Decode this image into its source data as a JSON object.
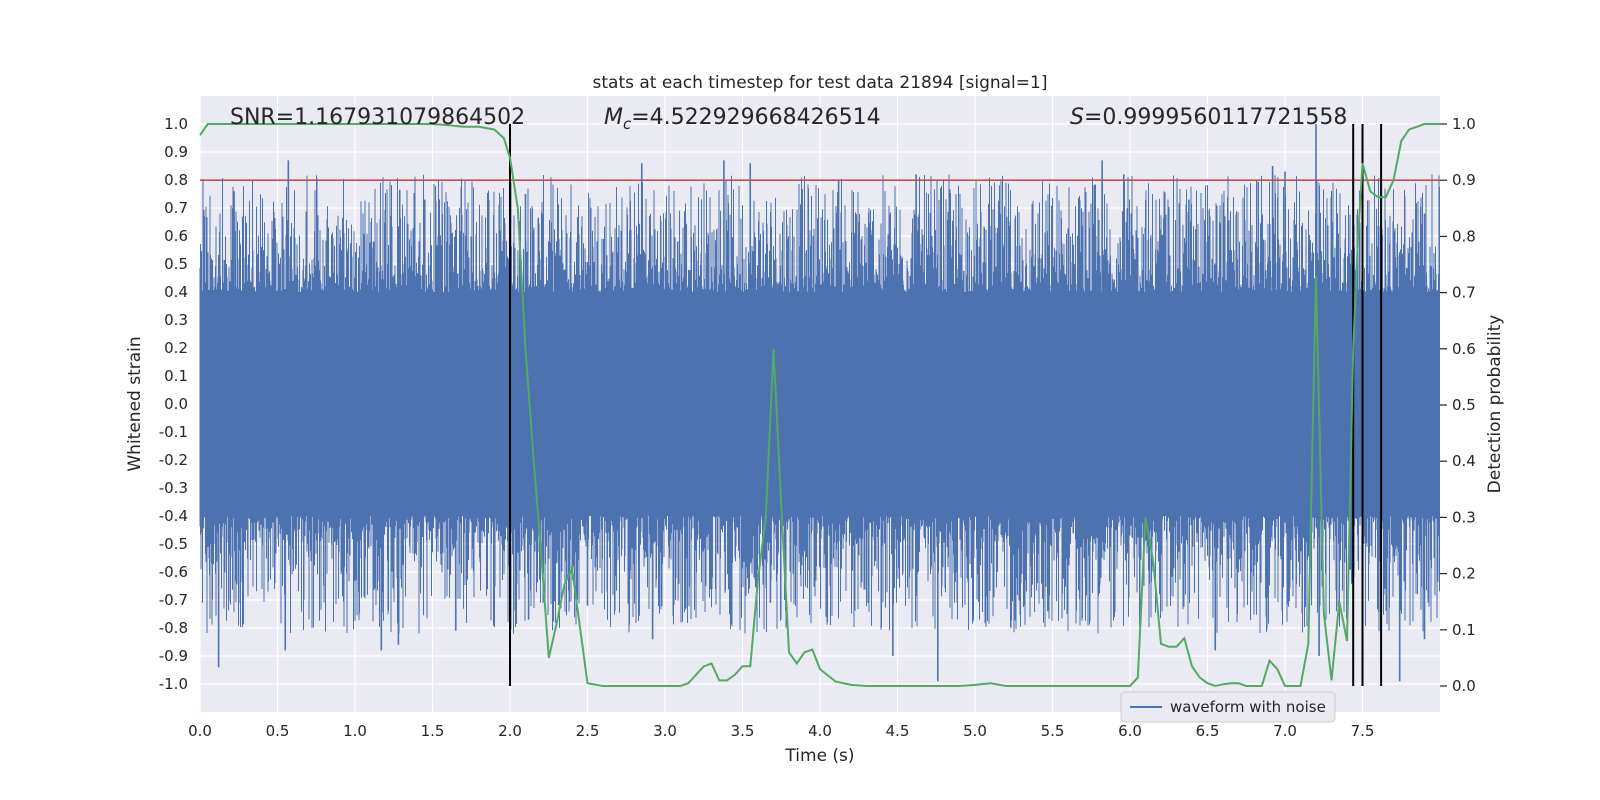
{
  "chart_data": {
    "type": "line",
    "title": "stats at each timestep for test data 21894 [signal=1]",
    "xlabel": "Time (s)",
    "ylabel_left": "Whitened strain",
    "ylabel_right": "Detection probability",
    "xlim": [
      0,
      8
    ],
    "ylim_left": [
      -1.1,
      1.1
    ],
    "ylim_right": [
      0.0,
      1.0
    ],
    "x_ticks": [
      "0.0",
      "0.5",
      "1.0",
      "1.5",
      "2.0",
      "2.5",
      "3.0",
      "3.5",
      "4.0",
      "4.5",
      "5.0",
      "5.5",
      "6.0",
      "6.5",
      "7.0",
      "7.5"
    ],
    "x_tick_values": [
      0,
      0.5,
      1,
      1.5,
      2,
      2.5,
      3,
      3.5,
      4,
      4.5,
      5,
      5.5,
      6,
      6.5,
      7,
      7.5
    ],
    "y_left_ticks": [
      "1.0",
      "0.9",
      "0.8",
      "0.7",
      "0.6",
      "0.5",
      "0.4",
      "0.3",
      "0.2",
      "0.1",
      "0.0",
      "-0.1",
      "-0.2",
      "-0.3",
      "-0.4",
      "-0.5",
      "-0.6",
      "-0.7",
      "-0.8",
      "-0.9",
      "-1.0"
    ],
    "y_left_tick_values": [
      1.0,
      0.9,
      0.8,
      0.7,
      0.6,
      0.5,
      0.4,
      0.3,
      0.2,
      0.1,
      0.0,
      -0.1,
      -0.2,
      -0.3,
      -0.4,
      -0.5,
      -0.6,
      -0.7,
      -0.8,
      -0.9,
      -1.0
    ],
    "y_right_ticks": [
      "1.0",
      "0.9",
      "0.8",
      "0.7",
      "0.6",
      "0.5",
      "0.4",
      "0.3",
      "0.2",
      "0.1",
      "0.0"
    ],
    "y_right_tick_values": [
      1.0,
      0.9,
      0.8,
      0.7,
      0.6,
      0.5,
      0.4,
      0.3,
      0.2,
      0.1,
      0.0
    ],
    "annotations": {
      "snr": "SNR=1.167931079864502",
      "mc_symbol": "M",
      "mc_subscript": "c",
      "mc_value": "=4.522929668426514",
      "s_symbol": "S",
      "s_value": "=0.9999560117721558"
    },
    "threshold": 0.9,
    "threshold_color": "#c44e52",
    "vertical_lines": [
      2.0,
      7.44,
      7.5,
      7.62
    ],
    "vertical_line_color": "#000000",
    "series": [
      {
        "name": "waveform with noise",
        "axis": "left",
        "color": "#4c72b0",
        "description": "dense noisy strain, core envelope ~±0.4, spikes up to ~±1.0",
        "envelope_core": 0.4,
        "spikes": [
          {
            "x": 0.22,
            "y": 0.76
          },
          {
            "x": 0.57,
            "y": 0.87
          },
          {
            "x": 1.12,
            "y": 0.58
          },
          {
            "x": 1.45,
            "y": 0.73
          },
          {
            "x": 2.1,
            "y": 0.75
          },
          {
            "x": 2.85,
            "y": 0.86
          },
          {
            "x": 3.38,
            "y": 0.87
          },
          {
            "x": 3.55,
            "y": 0.86
          },
          {
            "x": 4.12,
            "y": 0.8
          },
          {
            "x": 4.62,
            "y": 0.82
          },
          {
            "x": 5.82,
            "y": 0.87
          },
          {
            "x": 5.96,
            "y": 0.82
          },
          {
            "x": 6.38,
            "y": 0.73
          },
          {
            "x": 6.92,
            "y": 0.85
          },
          {
            "x": 7.0,
            "y": 0.83
          },
          {
            "x": 7.2,
            "y": 1.0
          },
          {
            "x": 7.5,
            "y": 0.92
          },
          {
            "x": 7.9,
            "y": 0.68
          },
          {
            "x": 0.12,
            "y": -0.94
          },
          {
            "x": 0.55,
            "y": -0.88
          },
          {
            "x": 1.17,
            "y": -0.88
          },
          {
            "x": 1.28,
            "y": -0.86
          },
          {
            "x": 1.65,
            "y": -0.81
          },
          {
            "x": 2.12,
            "y": -0.77
          },
          {
            "x": 2.5,
            "y": -0.72
          },
          {
            "x": 2.92,
            "y": -0.84
          },
          {
            "x": 3.68,
            "y": -0.71
          },
          {
            "x": 4.47,
            "y": -0.9
          },
          {
            "x": 4.76,
            "y": -0.99
          },
          {
            "x": 5.47,
            "y": -0.74
          },
          {
            "x": 6.55,
            "y": -0.88
          },
          {
            "x": 6.88,
            "y": -0.76
          },
          {
            "x": 7.22,
            "y": -0.9
          },
          {
            "x": 7.62,
            "y": -0.9
          },
          {
            "x": 7.74,
            "y": -0.99
          },
          {
            "x": 7.9,
            "y": -0.84
          }
        ]
      },
      {
        "name": "detection probability",
        "axis": "right",
        "color": "#55a868",
        "x": [
          0.0,
          0.05,
          0.1,
          0.2,
          0.3,
          0.4,
          0.5,
          0.6,
          0.7,
          0.8,
          0.9,
          1.0,
          1.1,
          1.2,
          1.3,
          1.4,
          1.5,
          1.6,
          1.7,
          1.8,
          1.9,
          1.96,
          2.0,
          2.05,
          2.1,
          2.15,
          2.2,
          2.25,
          2.3,
          2.35,
          2.4,
          2.5,
          2.6,
          2.7,
          2.8,
          2.9,
          3.0,
          3.05,
          3.1,
          3.15,
          3.2,
          3.25,
          3.3,
          3.35,
          3.4,
          3.45,
          3.5,
          3.55,
          3.6,
          3.65,
          3.7,
          3.75,
          3.8,
          3.85,
          3.9,
          3.95,
          4.0,
          4.1,
          4.2,
          4.3,
          4.4,
          4.5,
          4.6,
          4.7,
          4.8,
          4.9,
          5.0,
          5.1,
          5.2,
          5.3,
          5.4,
          5.5,
          5.6,
          5.7,
          5.75,
          5.8,
          5.85,
          5.9,
          5.95,
          6.0,
          6.05,
          6.1,
          6.15,
          6.2,
          6.25,
          6.3,
          6.35,
          6.4,
          6.45,
          6.5,
          6.55,
          6.6,
          6.65,
          6.7,
          6.75,
          6.8,
          6.85,
          6.9,
          6.95,
          7.0,
          7.05,
          7.1,
          7.15,
          7.2,
          7.25,
          7.3,
          7.35,
          7.4,
          7.44,
          7.47,
          7.5,
          7.55,
          7.6,
          7.65,
          7.7,
          7.75,
          7.8,
          7.9,
          8.0
        ],
        "y": [
          0.98,
          1.0,
          1.0,
          1.0,
          1.0,
          1.0,
          1.0,
          1.0,
          1.0,
          1.0,
          1.0,
          1.0,
          1.0,
          1.0,
          1.0,
          1.0,
          1.0,
          0.998,
          0.995,
          0.995,
          0.99,
          0.975,
          0.94,
          0.85,
          0.6,
          0.41,
          0.24,
          0.05,
          0.11,
          0.18,
          0.21,
          0.005,
          0.0,
          0.0,
          0.0,
          0.0,
          0.0,
          0.0,
          0.0,
          0.005,
          0.02,
          0.035,
          0.04,
          0.01,
          0.01,
          0.02,
          0.035,
          0.035,
          0.19,
          0.3,
          0.6,
          0.32,
          0.06,
          0.04,
          0.06,
          0.065,
          0.03,
          0.008,
          0.002,
          0.0,
          0.0,
          0.0,
          0.0,
          0.0,
          0.0,
          0.0,
          0.002,
          0.005,
          0.0,
          0.0,
          0.0,
          0.0,
          0.0,
          0.0,
          0.0,
          0.0,
          0.0,
          0.0,
          0.0,
          0.0,
          0.015,
          0.3,
          0.22,
          0.075,
          0.07,
          0.07,
          0.085,
          0.035,
          0.015,
          0.005,
          0.0,
          0.003,
          0.005,
          0.005,
          0.0,
          0.0,
          0.0,
          0.045,
          0.03,
          0.0,
          0.0,
          0.0,
          0.075,
          0.73,
          0.13,
          0.01,
          0.15,
          0.08,
          0.6,
          0.79,
          0.93,
          0.88,
          0.87,
          0.87,
          0.9,
          0.97,
          0.99,
          1.0,
          1.0
        ]
      }
    ],
    "legend": {
      "placement": "bottom-right",
      "entries": [
        "waveform with noise"
      ]
    }
  }
}
